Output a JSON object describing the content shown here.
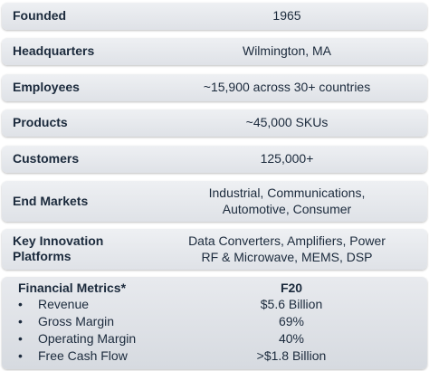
{
  "rows": [
    {
      "label": "Founded",
      "value_lines": [
        "1965"
      ]
    },
    {
      "label": "Headquarters",
      "value_lines": [
        "Wilmington, MA"
      ]
    },
    {
      "label": "Employees",
      "value_lines": [
        "~15,900 across 30+ countries"
      ]
    },
    {
      "label": "Products",
      "value_lines": [
        "~45,000 SKUs"
      ]
    },
    {
      "label": "Customers",
      "value_lines": [
        "125,000+"
      ]
    },
    {
      "label": "End Markets",
      "value_lines": [
        "Industrial, Communications,",
        "Automotive, Consumer"
      ]
    },
    {
      "label_lines": [
        "Key Innovation",
        "Platforms"
      ],
      "value_lines": [
        "Data Converters, Amplifiers, Power",
        "RF & Microwave, MEMS, DSP"
      ]
    }
  ],
  "financial": {
    "title": "Financial Metrics*",
    "column": "F20",
    "bullet": "•",
    "items": [
      {
        "label": "Revenue",
        "value": "$5.6 Billion"
      },
      {
        "label": "Gross Margin",
        "value": "69%"
      },
      {
        "label": "Operating Margin",
        "value": "40%"
      },
      {
        "label": "Free Cash Flow",
        "value": ">$1.8 Billion"
      }
    ]
  }
}
